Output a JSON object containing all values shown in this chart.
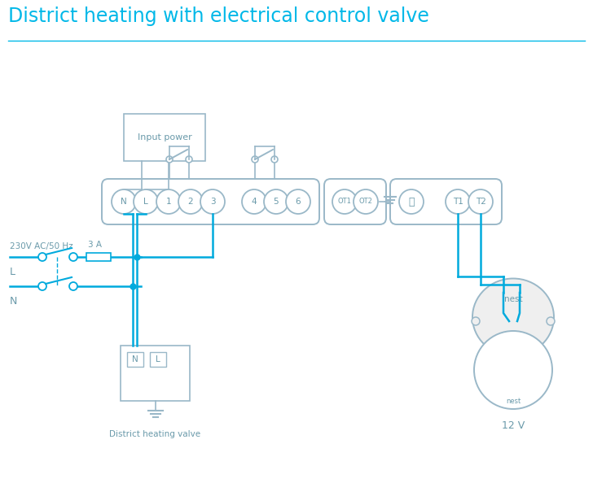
{
  "title": "District heating with electrical control valve",
  "title_color": "#00b8e8",
  "title_fontsize": 17,
  "line_color": "#00aadd",
  "connector_color": "#9ab8c8",
  "text_color": "#6a9aaa",
  "bg_color": "#ffffff",
  "terminal_labels_main": [
    "N",
    "L",
    "1",
    "2",
    "3",
    "4",
    "5",
    "6"
  ],
  "ot_labels": [
    "OT1",
    "OT2"
  ],
  "label_230v": "230V AC/50 Hz",
  "label_L": "L",
  "label_N": "N",
  "label_3A": "3 A",
  "label_input_power": "Input power",
  "label_district": "District heating valve",
  "label_12v": "12 V",
  "label_nest": "nest"
}
